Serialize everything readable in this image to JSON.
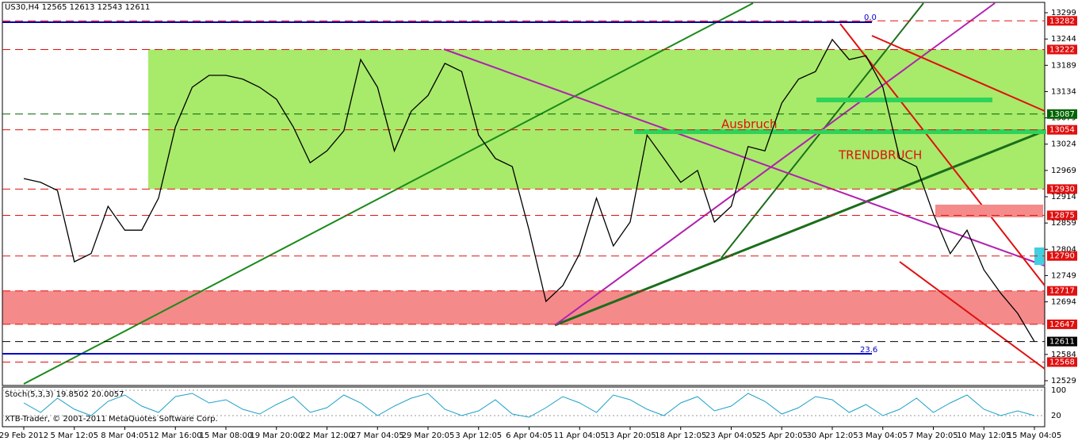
{
  "chart_data": [
    {
      "type": "line",
      "title": "US30,H4 12565 12613 12543 12611",
      "categories": [
        "29 Feb 2012",
        null,
        null,
        "5 Mar 12:05",
        null,
        null,
        "8 Mar 04:05",
        null,
        null,
        "12 Mar 16:00",
        null,
        null,
        "15 Mar 08:00",
        null,
        null,
        "19 Mar 20:00",
        null,
        null,
        "22 Mar 12:00",
        null,
        null,
        "27 Mar 04:05",
        null,
        null,
        "29 Mar 20:05",
        null,
        null,
        "3 Apr 12:05",
        null,
        null,
        "6 Apr 04:05",
        null,
        null,
        "11 Apr 04:05",
        null,
        null,
        "13 Apr 20:05",
        null,
        null,
        "18 Apr 12:05",
        null,
        null,
        "23 Apr 04:05",
        null,
        null,
        "25 Apr 20:05",
        null,
        null,
        "30 Apr 12:05",
        null,
        null,
        "3 May 04:05",
        null,
        null,
        "7 May 20:05",
        null,
        null,
        "10 May 12:05",
        null,
        null,
        "15 May 04:05"
      ],
      "values": [
        12952,
        12944,
        12927,
        12778,
        12795,
        12894,
        12844,
        12844,
        12911,
        13060,
        13143,
        13168,
        13168,
        13160,
        13143,
        13118,
        13060,
        12985,
        13010,
        13052,
        13201,
        13143,
        13010,
        13093,
        13126,
        13193,
        13176,
        13043,
        12994,
        12977,
        12844,
        12695,
        12728,
        12795,
        12911,
        12811,
        12861,
        13043,
        12994,
        12944,
        12969,
        12861,
        12894,
        13019,
        13010,
        13110,
        13160,
        13176,
        13243,
        13201,
        13209,
        13143,
        12994,
        12977,
        12878,
        12795,
        12844,
        12761,
        12712,
        12670,
        12611
      ],
      "color": "#000000",
      "ylim": [
        12519,
        13319
      ],
      "yticks": [
        13299,
        13244,
        13189,
        13134,
        13079,
        13024,
        12969,
        12914,
        12859,
        12804,
        12749,
        12694,
        12584,
        12529
      ],
      "levels": [
        {
          "value": 13282,
          "color": "#e01010"
        },
        {
          "value": 13222,
          "color": "#e01010"
        },
        {
          "value": 13087,
          "color": "#006400"
        },
        {
          "value": 13054,
          "color": "#e01010"
        },
        {
          "value": 12930,
          "color": "#e01010"
        },
        {
          "value": 12875,
          "color": "#e01010"
        },
        {
          "value": 12790,
          "color": "#e01010"
        },
        {
          "value": 12717,
          "color": "#e01010"
        },
        {
          "value": 12647,
          "color": "#e01010"
        },
        {
          "value": 12611,
          "color": "#000000"
        },
        {
          "value": 12568,
          "color": "#e01010"
        }
      ],
      "annotations": [
        "Ausbruch",
        "TRENDBRUCH",
        "0.0",
        "23.6"
      ]
    },
    {
      "type": "line",
      "title": "Stoch(5,3,3) 19.8502 20.0057",
      "values": [
        60,
        30,
        75,
        40,
        20,
        65,
        85,
        50,
        30,
        80,
        90,
        60,
        70,
        40,
        25,
        55,
        80,
        30,
        45,
        85,
        60,
        20,
        50,
        75,
        90,
        40,
        20,
        35,
        70,
        25,
        15,
        45,
        80,
        60,
        30,
        85,
        70,
        40,
        20,
        60,
        80,
        35,
        50,
        90,
        65,
        25,
        45,
        80,
        70,
        30,
        55,
        20,
        40,
        75,
        30,
        60,
        85,
        40,
        20,
        35,
        20
      ],
      "color": "#1ca0c8",
      "ylim": [
        0,
        100
      ],
      "yticks": [
        100,
        20
      ],
      "footer": "XTB-Trader, © 2001-2011 MetaQuotes Software Corp."
    }
  ]
}
